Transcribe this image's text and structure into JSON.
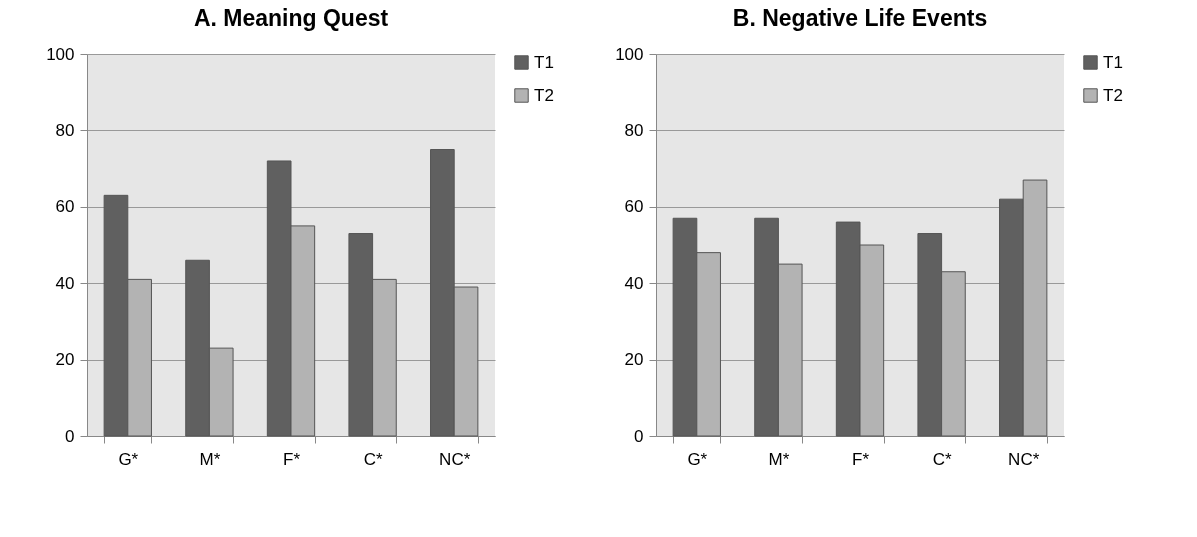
{
  "chart_data": [
    {
      "type": "bar",
      "title": "A. Meaning Quest",
      "categories": [
        "G*",
        "M*",
        "F*",
        "C*",
        "NC*"
      ],
      "ylim": [
        0,
        100
      ],
      "yticks": [
        0,
        20,
        40,
        60,
        80,
        100
      ],
      "grid": "y",
      "legend": "right",
      "series": [
        {
          "name": "T1",
          "color": "#606060",
          "values": [
            63,
            46,
            72,
            53,
            75
          ]
        },
        {
          "name": "T2",
          "color": "#b3b3b3",
          "values": [
            41,
            23,
            55,
            41,
            39
          ]
        }
      ]
    },
    {
      "type": "bar",
      "title": "B. Negative Life Events",
      "categories": [
        "G*",
        "M*",
        "F*",
        "C*",
        "NC*"
      ],
      "ylim": [
        0,
        100
      ],
      "yticks": [
        0,
        20,
        40,
        60,
        80,
        100
      ],
      "grid": "y",
      "legend": "right",
      "series": [
        {
          "name": "T1",
          "color": "#606060",
          "values": [
            57,
            57,
            56,
            53,
            62
          ]
        },
        {
          "name": "T2",
          "color": "#b3b3b3",
          "values": [
            48,
            45,
            50,
            43,
            67
          ]
        }
      ]
    }
  ]
}
